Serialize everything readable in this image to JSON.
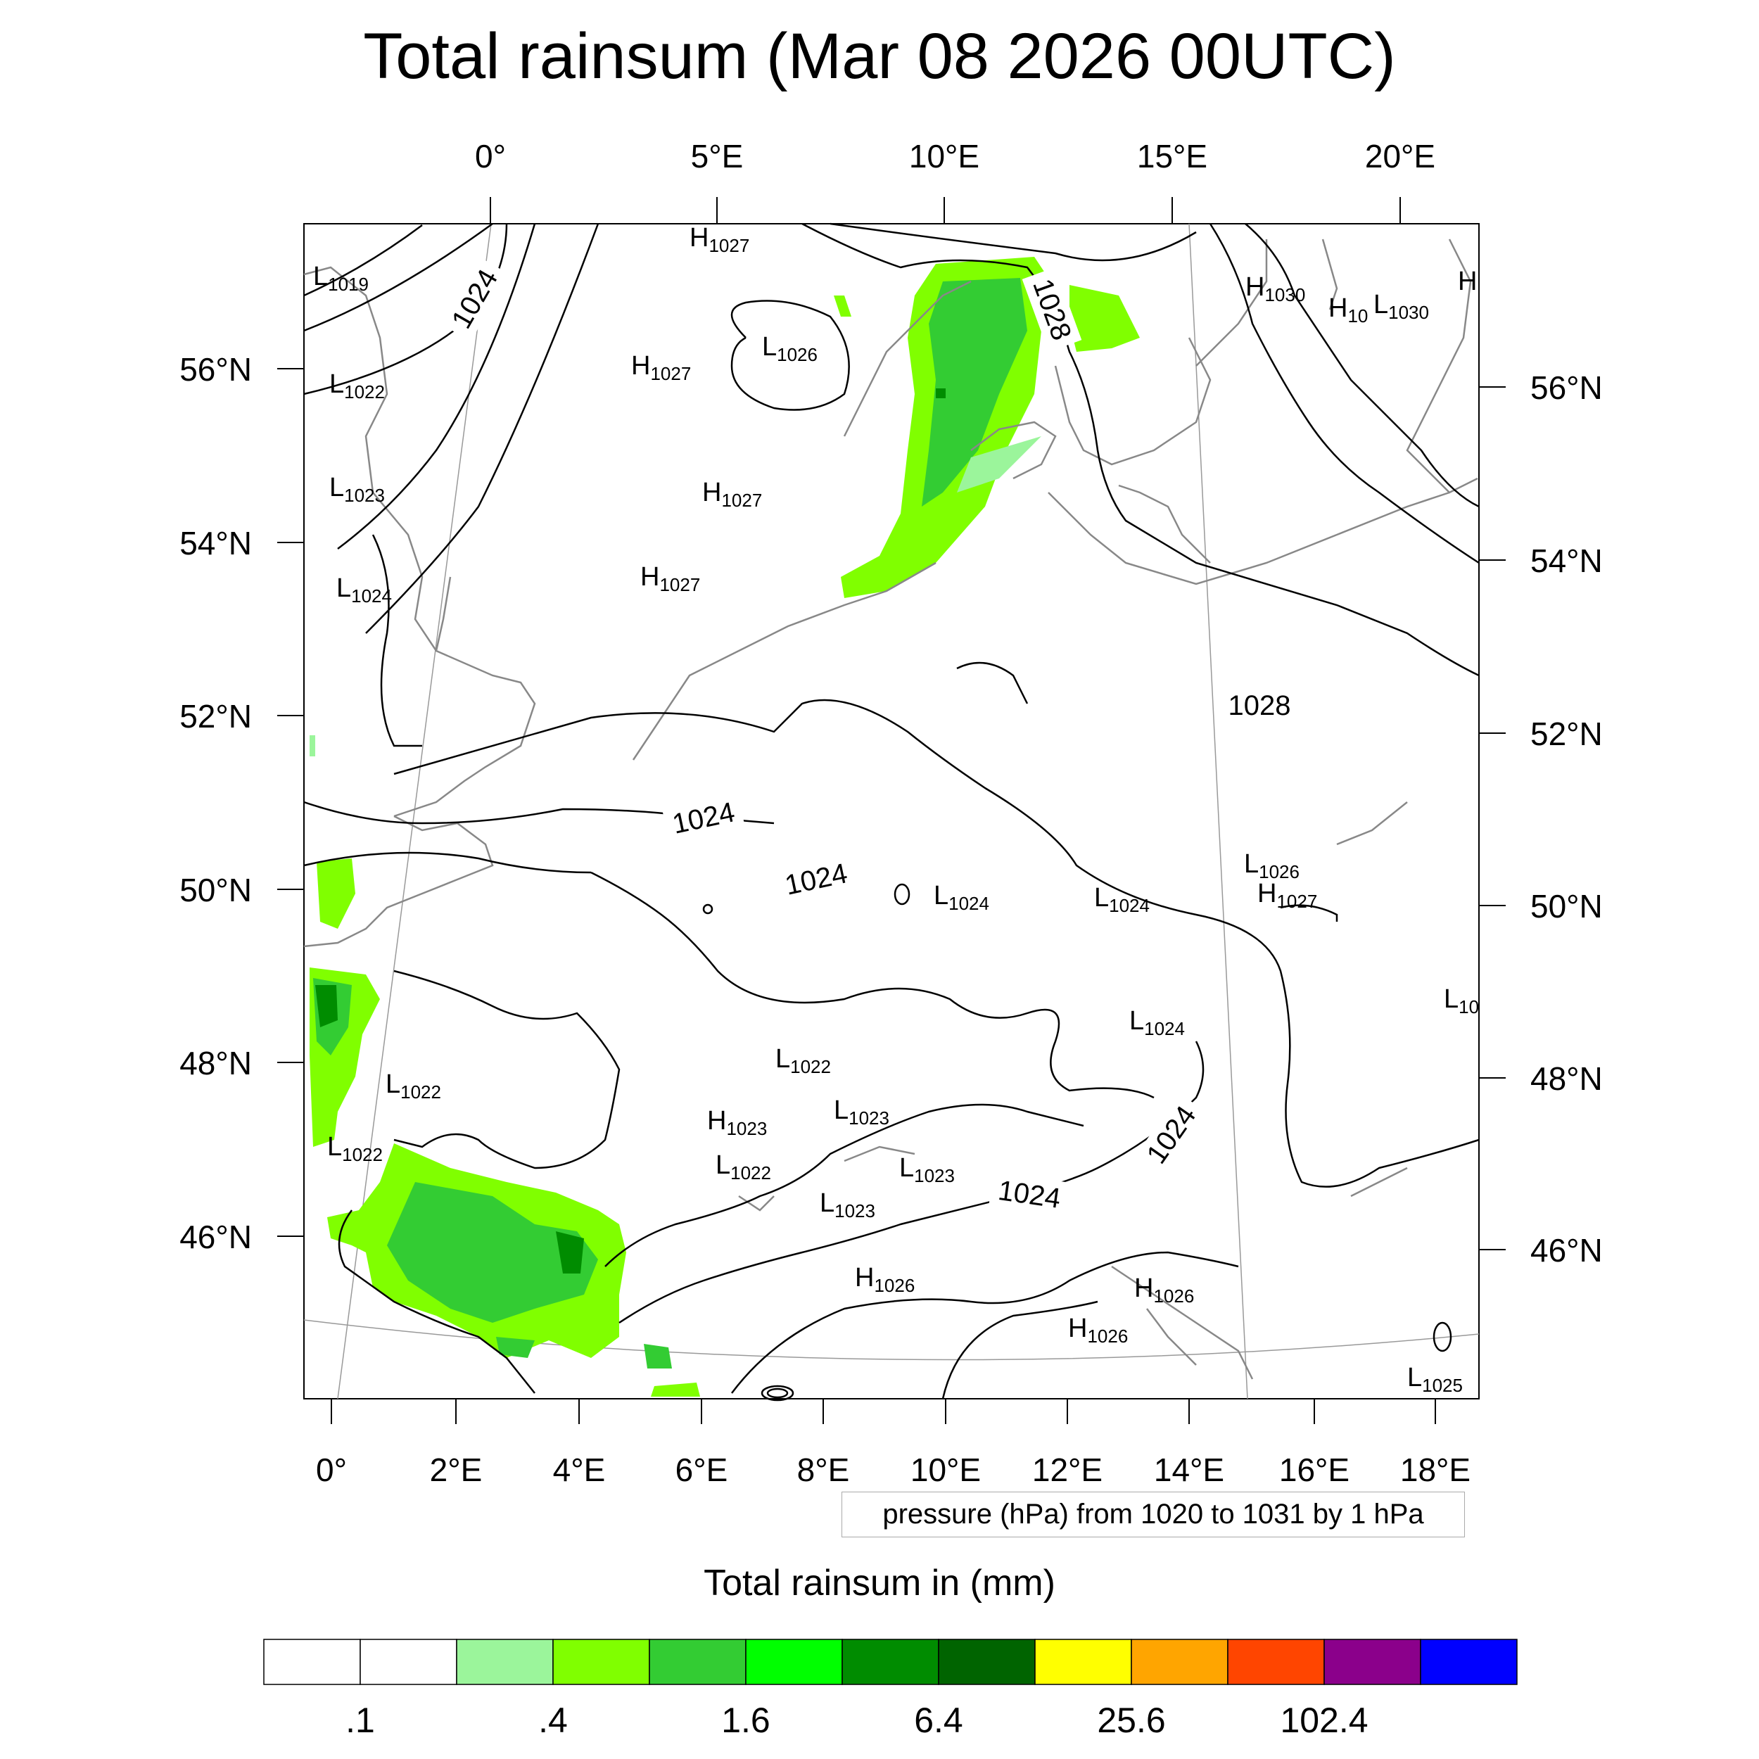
{
  "title": "Total rainsum (Mar 08 2026 00UTC)",
  "axes": {
    "top_lon": [
      "0°",
      "5°E",
      "10°E",
      "15°E",
      "20°E"
    ],
    "bottom_lon": [
      "0°",
      "2°E",
      "4°E",
      "6°E",
      "8°E",
      "10°E",
      "12°E",
      "14°E",
      "16°E",
      "18°E"
    ],
    "left_lat": [
      "56°N",
      "54°N",
      "52°N",
      "50°N",
      "48°N",
      "46°N"
    ],
    "right_lat": [
      "56°N",
      "54°N",
      "52°N",
      "50°N",
      "48°N",
      "46°N"
    ]
  },
  "isobar_labels": [
    "1024",
    "1028",
    "1028",
    "1024",
    "1024",
    "1024",
    "1024"
  ],
  "pressure_centers": [
    {
      "t": "L",
      "v": "1019"
    },
    {
      "t": "L",
      "v": "1022"
    },
    {
      "t": "L",
      "v": "1023"
    },
    {
      "t": "L",
      "v": "1024"
    },
    {
      "t": "H",
      "v": "1027"
    },
    {
      "t": "H",
      "v": "1027"
    },
    {
      "t": "H",
      "v": "1027"
    },
    {
      "t": "H",
      "v": "1027"
    },
    {
      "t": "L",
      "v": "1026"
    },
    {
      "t": "H",
      "v": "1030"
    },
    {
      "t": "H",
      "v": "10"
    },
    {
      "t": "L",
      "v": "1030"
    },
    {
      "t": "H",
      "v": ""
    },
    {
      "t": "L",
      "v": "1026"
    },
    {
      "t": "H",
      "v": "1027"
    },
    {
      "t": "L",
      "v": "1024"
    },
    {
      "t": "L",
      "v": "1024"
    },
    {
      "t": "L",
      "v": "1024"
    },
    {
      "t": "L",
      "v": "10"
    },
    {
      "t": "L",
      "v": "1022"
    },
    {
      "t": "L",
      "v": "1022"
    },
    {
      "t": "L",
      "v": "1022"
    },
    {
      "t": "H",
      "v": "1023"
    },
    {
      "t": "L",
      "v": "1023"
    },
    {
      "t": "L",
      "v": "1022"
    },
    {
      "t": "L",
      "v": "1023"
    },
    {
      "t": "L",
      "v": "1023"
    },
    {
      "t": "H",
      "v": "1026"
    },
    {
      "t": "H",
      "v": "1026"
    },
    {
      "t": "H",
      "v": "1026"
    },
    {
      "t": "L",
      "v": "1025"
    }
  ],
  "contour_note": "pressure (hPa) from 1020 to 1031 by 1 hPa",
  "colorbar": {
    "title": "Total rainsum in (mm)",
    "colors": [
      "#ffffff",
      "#ffffff",
      "#9bf59b",
      "#80ff00",
      "#33cc33",
      "#00ff00",
      "#008c00",
      "#006400",
      "#ffff00",
      "#ffa500",
      "#ff4500",
      "#8b008b",
      "#0000ff"
    ],
    "tick_labels": [
      ".1",
      ".4",
      "1.6",
      "6.4",
      "25.6",
      "102.4"
    ]
  }
}
